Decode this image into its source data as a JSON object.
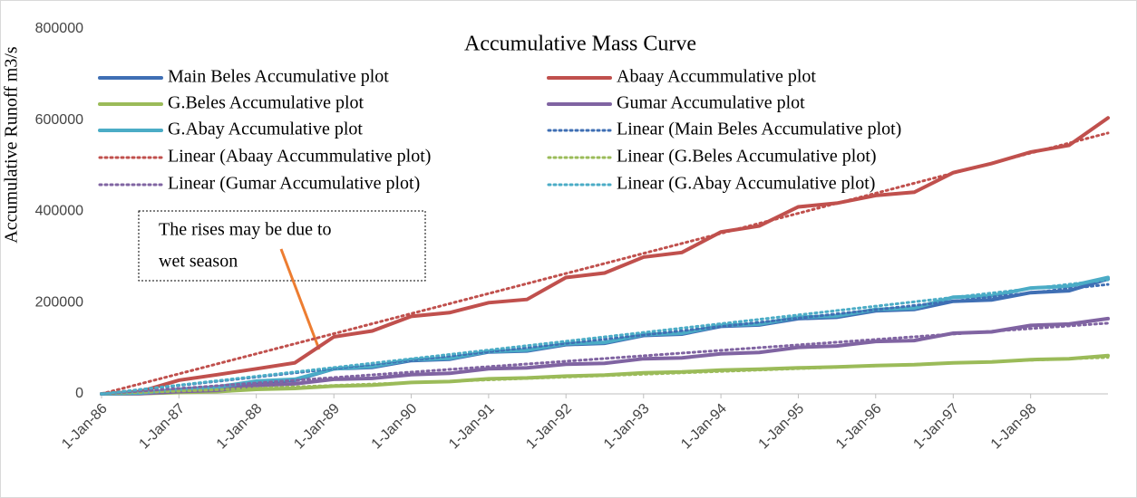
{
  "chart_data": {
    "type": "line",
    "title": "Accumulative Mass Curve",
    "y_label": "Accumulative Runoff m3/s",
    "annotation": [
      "The rises may be due to",
      "wet season"
    ],
    "x": [
      "1986-01-01",
      "1986-07-01",
      "1987-01-01",
      "1987-07-01",
      "1988-01-01",
      "1988-07-01",
      "1989-01-01",
      "1989-07-01",
      "1990-01-01",
      "1990-07-01",
      "1991-01-01",
      "1991-07-01",
      "1992-01-01",
      "1992-07-01",
      "1993-01-01",
      "1993-07-01",
      "1994-01-01",
      "1994-07-01",
      "1995-01-01",
      "1995-07-01",
      "1996-01-01",
      "1996-07-01",
      "1997-01-01",
      "1997-07-01",
      "1998-01-01",
      "1998-07-01",
      "1999-01-01"
    ],
    "xlim": [
      "1986-01-01",
      "1999-01-01"
    ],
    "xticks": [
      {
        "value": "1986-01-01",
        "label": "1-Jan-86"
      },
      {
        "value": "1987-01-01",
        "label": "1-Jan-87"
      },
      {
        "value": "1988-01-01",
        "label": "1-Jan-88"
      },
      {
        "value": "1989-01-01",
        "label": "1-Jan-89"
      },
      {
        "value": "1990-01-01",
        "label": "1-Jan-90"
      },
      {
        "value": "1991-01-01",
        "label": "1-Jan-91"
      },
      {
        "value": "1992-01-01",
        "label": "1-Jan-92"
      },
      {
        "value": "1993-01-01",
        "label": "1-Jan-93"
      },
      {
        "value": "1994-01-01",
        "label": "1-Jan-94"
      },
      {
        "value": "1995-01-01",
        "label": "1-Jan-95"
      },
      {
        "value": "1996-01-01",
        "label": "1-Jan-96"
      },
      {
        "value": "1997-01-01",
        "label": "1-Jan-97"
      },
      {
        "value": "1998-01-01",
        "label": "1-Jan-98"
      }
    ],
    "ylim": [
      0,
      800000
    ],
    "yticks": [
      0,
      200000,
      400000,
      600000,
      800000
    ],
    "grid": false,
    "series": [
      {
        "name": "Main Beles Accumulative plot",
        "color": "#3f6fb4",
        "style": "solid",
        "values": [
          0,
          1000,
          8000,
          13000,
          25000,
          30000,
          55000,
          58000,
          73000,
          76000,
          92000,
          94000,
          108000,
          111000,
          128000,
          131000,
          148000,
          151000,
          165000,
          168000,
          182000,
          185000,
          203000,
          206000,
          222000,
          226000,
          252000
        ]
      },
      {
        "name": "Abaay Accummulative plot",
        "color": "#c0504d",
        "style": "solid",
        "values": [
          0,
          5000,
          30000,
          42000,
          55000,
          68000,
          125000,
          138000,
          170000,
          178000,
          200000,
          207000,
          255000,
          265000,
          300000,
          310000,
          355000,
          368000,
          410000,
          418000,
          435000,
          442000,
          485000,
          505000,
          530000,
          545000,
          605000
        ]
      },
      {
        "name": "G.Beles Accumulative plot",
        "color": "#9bbb59",
        "style": "solid",
        "values": [
          0,
          300,
          3000,
          5000,
          10000,
          12000,
          17000,
          19000,
          25000,
          27000,
          33000,
          35000,
          39000,
          41000,
          46000,
          48000,
          52000,
          54000,
          57000,
          59000,
          62000,
          64000,
          68000,
          70000,
          75000,
          77000,
          84000
        ]
      },
      {
        "name": "Gumar Accumulative plot",
        "color": "#8064a2",
        "style": "solid",
        "values": [
          0,
          500,
          5000,
          8000,
          18000,
          22000,
          32000,
          34000,
          42000,
          45000,
          55000,
          57000,
          65000,
          67000,
          77000,
          79000,
          88000,
          91000,
          102000,
          105000,
          115000,
          117000,
          133000,
          136000,
          150000,
          153000,
          165000
        ]
      },
      {
        "name": "G.Abay Accumulative plot",
        "color": "#4bacc6",
        "style": "solid",
        "values": [
          0,
          2000,
          10000,
          15000,
          28000,
          32000,
          55000,
          60000,
          75000,
          78000,
          93000,
          96000,
          110000,
          113000,
          130000,
          133000,
          150000,
          153000,
          168000,
          171000,
          185000,
          188000,
          212000,
          215000,
          232000,
          236000,
          255000
        ]
      },
      {
        "name": "Linear (Main Beles Accumulative plot)",
        "color": "#3f6fb4",
        "style": "dotted",
        "x": [
          "1986-01-01",
          "1999-01-01"
        ],
        "values": [
          0,
          240000
        ]
      },
      {
        "name": "Linear (Abaay Accummulative plot)",
        "color": "#c0504d",
        "style": "dotted",
        "x": [
          "1986-01-01",
          "1999-01-01"
        ],
        "values": [
          0,
          572000
        ]
      },
      {
        "name": "Linear (G.Beles Accumulative plot)",
        "color": "#9bbb59",
        "style": "dotted",
        "x": [
          "1986-01-01",
          "1999-01-01"
        ],
        "values": [
          0,
          80000
        ]
      },
      {
        "name": "Linear (Gumar Accumulative plot)",
        "color": "#8064a2",
        "style": "dotted",
        "x": [
          "1986-01-01",
          "1999-01-01"
        ],
        "values": [
          0,
          155000
        ]
      },
      {
        "name": "Linear (G.Abay Accumulative plot)",
        "color": "#4bacc6",
        "style": "dotted",
        "x": [
          "1986-01-01",
          "1999-01-01"
        ],
        "values": [
          0,
          250000
        ]
      }
    ]
  }
}
